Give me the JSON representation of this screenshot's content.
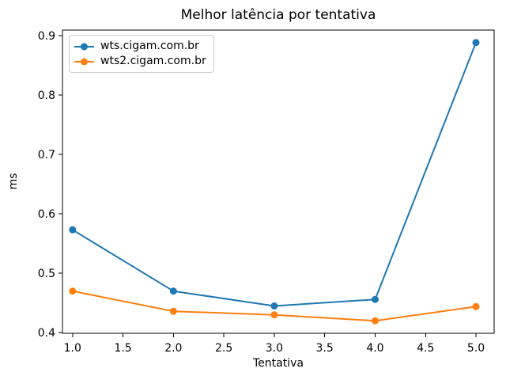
{
  "chart_data": {
    "type": "line",
    "title": "Melhor latência por tentativa",
    "xlabel": "Tentativa",
    "ylabel": "ms",
    "x": [
      1,
      2,
      3,
      4,
      5
    ],
    "series": [
      {
        "name": "wts.cigam.com.br",
        "color": "#1f77b4",
        "values": [
          0.573,
          0.47,
          0.445,
          0.456,
          0.888
        ]
      },
      {
        "name": "wts2.cigam.com.br",
        "color": "#ff7f0e",
        "values": [
          0.47,
          0.436,
          0.43,
          0.42,
          0.444
        ]
      }
    ],
    "xticks": [
      1.0,
      1.5,
      2.0,
      2.5,
      3.0,
      3.5,
      4.0,
      4.5,
      5.0
    ],
    "xtick_labels": [
      "1.0",
      "1.5",
      "2.0",
      "2.5",
      "3.0",
      "3.5",
      "4.0",
      "4.5",
      "5.0"
    ],
    "yticks": [
      0.4,
      0.5,
      0.6,
      0.7,
      0.8,
      0.9
    ],
    "ytick_labels": [
      "0.4",
      "0.5",
      "0.6",
      "0.7",
      "0.8",
      "0.9"
    ],
    "xlim": [
      0.9,
      5.18
    ],
    "ylim": [
      0.399,
      0.909
    ],
    "grid": false,
    "legend_position": "upper left",
    "marker": "circle",
    "line_width": 2,
    "marker_radius": 4.5,
    "axis_color": "#000000"
  }
}
